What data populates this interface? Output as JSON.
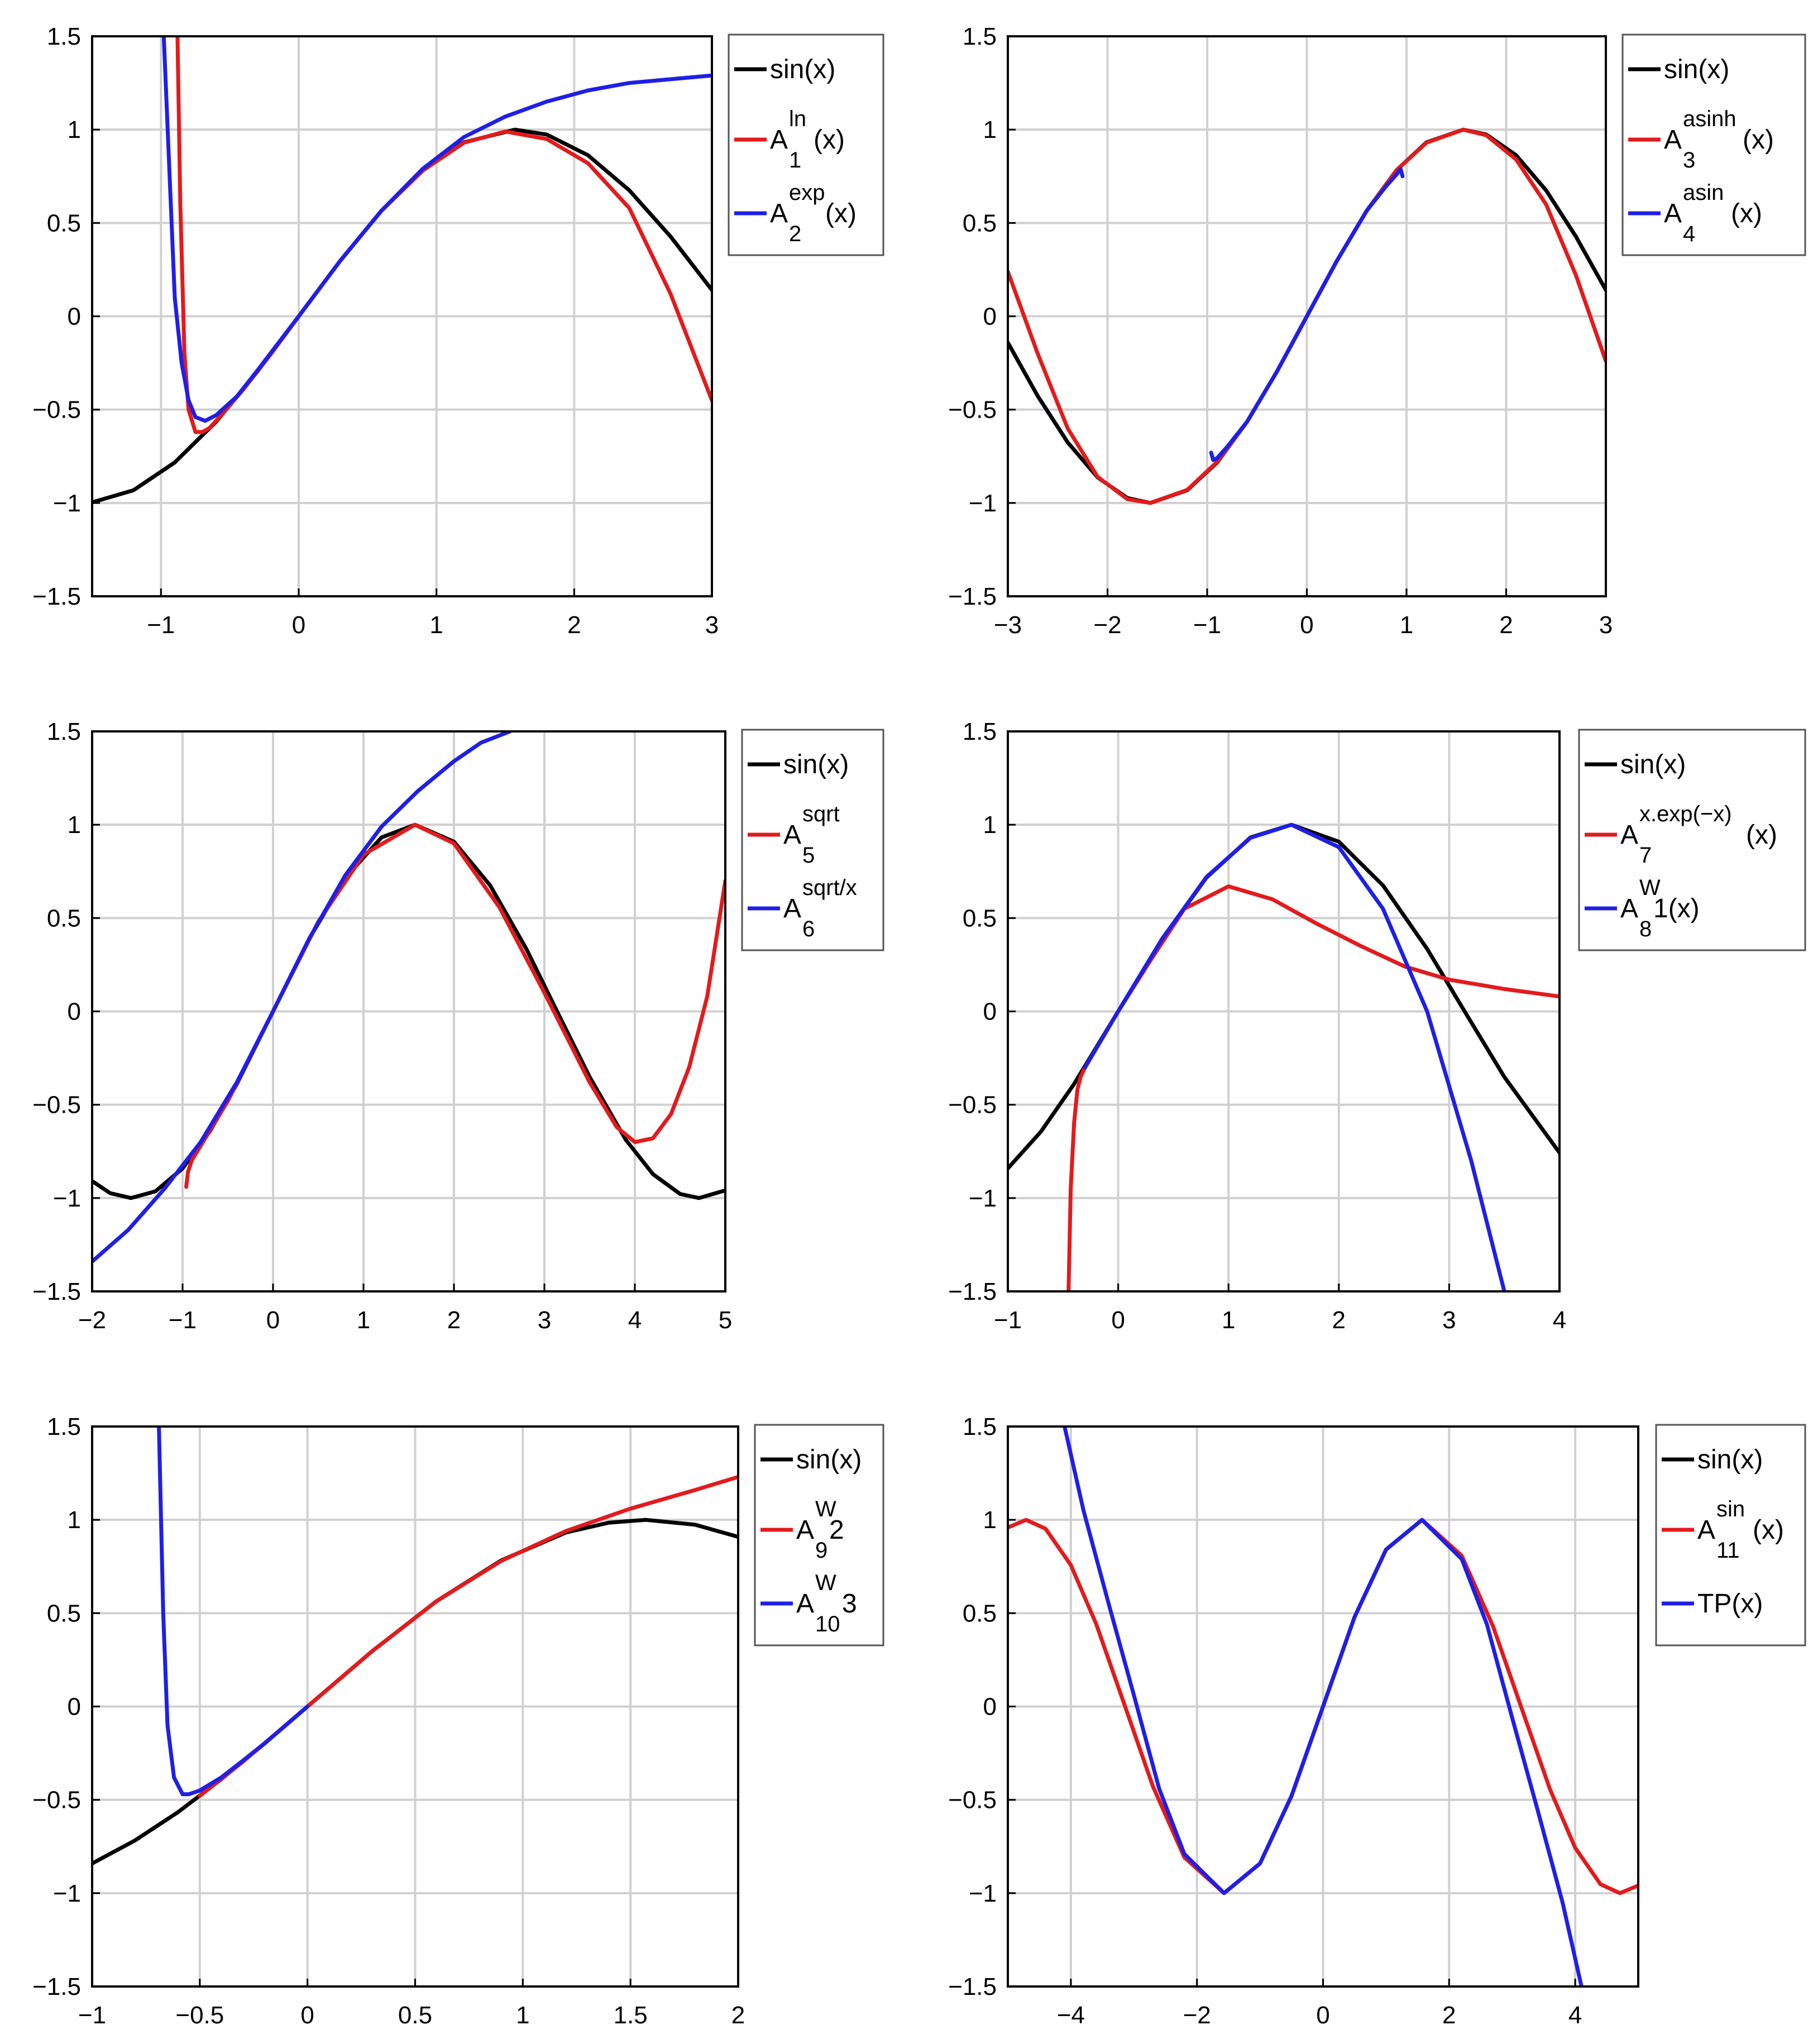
{
  "colors": {
    "sin": "#000000",
    "red": "#e41a1c",
    "blue": "#1f1fe8",
    "grid": "#d0d0d0"
  },
  "chart_data": [
    {
      "type": "line",
      "id": "p1",
      "xlim": [
        -1.5,
        3
      ],
      "ylim": [
        -1.5,
        1.5
      ],
      "xticks": [
        "-1",
        "0",
        "1",
        "2",
        "3"
      ],
      "yticks": [
        "-1.5",
        "-1",
        "-0.5",
        "0",
        "0.5",
        "1",
        "1.5"
      ],
      "grid": true,
      "legend": [
        {
          "base": "sin(x)",
          "sup": "",
          "sub": "",
          "post": ""
        },
        {
          "base": "A",
          "sup": "ln",
          "sub": "1",
          "post": "(x)"
        },
        {
          "base": "A",
          "sup": "exp",
          "sub": "2",
          "post": "(x)"
        }
      ],
      "series": [
        {
          "name": "sin(x)",
          "color": "sin",
          "x": [
            -1.5,
            -1.2,
            -0.9,
            -0.6,
            -0.3,
            0,
            0.3,
            0.6,
            0.9,
            1.2,
            1.57,
            1.8,
            2.1,
            2.4,
            2.7,
            3.0
          ],
          "y": [
            -0.997,
            -0.932,
            -0.783,
            -0.565,
            -0.296,
            0,
            0.296,
            0.565,
            0.783,
            0.932,
            1.0,
            0.974,
            0.863,
            0.675,
            0.427,
            0.141
          ]
        },
        {
          "name": "A1 ln(x)",
          "color": "red",
          "x": [
            -0.88,
            -0.86,
            -0.83,
            -0.8,
            -0.75,
            -0.7,
            -0.65,
            -0.55,
            -0.4,
            -0.2,
            0,
            0.3,
            0.6,
            0.9,
            1.2,
            1.5,
            1.8,
            2.1,
            2.4,
            2.7,
            3.0
          ],
          "y": [
            1.5,
            0.6,
            -0.2,
            -0.5,
            -0.62,
            -0.62,
            -0.6,
            -0.52,
            -0.39,
            -0.2,
            0,
            0.296,
            0.565,
            0.78,
            0.93,
            0.99,
            0.95,
            0.82,
            0.58,
            0.12,
            -0.45
          ]
        },
        {
          "name": "A2 exp(x)",
          "color": "blue",
          "x": [
            -0.98,
            -0.94,
            -0.9,
            -0.85,
            -0.8,
            -0.75,
            -0.68,
            -0.6,
            -0.45,
            -0.3,
            0,
            0.3,
            0.6,
            0.9,
            1.2,
            1.5,
            1.8,
            2.1,
            2.4,
            2.7,
            3.0
          ],
          "y": [
            1.5,
            0.8,
            0.1,
            -0.25,
            -0.45,
            -0.54,
            -0.56,
            -0.53,
            -0.43,
            -0.29,
            0,
            0.296,
            0.565,
            0.79,
            0.96,
            1.07,
            1.15,
            1.21,
            1.25,
            1.27,
            1.29
          ]
        }
      ]
    },
    {
      "type": "line",
      "id": "p2",
      "xlim": [
        -3,
        3
      ],
      "ylim": [
        -1.5,
        1.5
      ],
      "xticks": [
        "-3",
        "-2",
        "-1",
        "0",
        "1",
        "2",
        "3"
      ],
      "yticks": [
        "-1.5",
        "-1",
        "-0.5",
        "0",
        "0.5",
        "1",
        "1.5"
      ],
      "grid": true,
      "legend": [
        {
          "base": "sin(x)",
          "sup": "",
          "sub": "",
          "post": ""
        },
        {
          "base": "A",
          "sup": "asinh",
          "sub": "3",
          "post": "(x)"
        },
        {
          "base": "A",
          "sup": "asin",
          "sub": "4",
          "post": "(x)"
        }
      ],
      "series": [
        {
          "name": "sin(x)",
          "color": "sin",
          "x": [
            -3,
            -2.7,
            -2.4,
            -2.1,
            -1.8,
            -1.57,
            -1.2,
            -0.9,
            -0.6,
            -0.3,
            0,
            0.3,
            0.6,
            0.9,
            1.2,
            1.57,
            1.8,
            2.1,
            2.4,
            2.7,
            3.0
          ],
          "y": [
            -0.141,
            -0.427,
            -0.675,
            -0.863,
            -0.974,
            -1.0,
            -0.932,
            -0.783,
            -0.565,
            -0.296,
            0,
            0.296,
            0.565,
            0.783,
            0.932,
            1.0,
            0.974,
            0.863,
            0.675,
            0.427,
            0.141
          ]
        },
        {
          "name": "A3 asinh(x)",
          "color": "red",
          "x": [
            -3,
            -2.7,
            -2.4,
            -2.1,
            -1.8,
            -1.57,
            -1.2,
            -0.9,
            -0.6,
            -0.3,
            0,
            0.3,
            0.6,
            0.9,
            1.2,
            1.57,
            1.8,
            2.1,
            2.4,
            2.7,
            3.0
          ],
          "y": [
            0.24,
            -0.2,
            -0.6,
            -0.86,
            -0.98,
            -1.0,
            -0.93,
            -0.78,
            -0.565,
            -0.296,
            0,
            0.296,
            0.565,
            0.783,
            0.93,
            1.0,
            0.97,
            0.84,
            0.6,
            0.22,
            -0.24
          ]
        },
        {
          "name": "A4 asin(x)",
          "color": "blue",
          "x": [
            -0.96,
            -0.94,
            -0.9,
            -0.8,
            -0.6,
            -0.3,
            0,
            0.3,
            0.6,
            0.8,
            0.9,
            0.94,
            0.96
          ],
          "y": [
            -0.73,
            -0.77,
            -0.76,
            -0.7,
            -0.565,
            -0.296,
            0,
            0.296,
            0.565,
            0.7,
            0.76,
            0.79,
            0.75
          ]
        }
      ]
    },
    {
      "type": "line",
      "id": "p3",
      "xlim": [
        -2,
        5
      ],
      "ylim": [
        -1.5,
        1.5
      ],
      "xticks": [
        "-2",
        "-1",
        "0",
        "1",
        "2",
        "3",
        "4",
        "5"
      ],
      "yticks": [
        "-1.5",
        "-1",
        "-0.5",
        "0",
        "0.5",
        "1",
        "1.5"
      ],
      "grid": true,
      "legend": [
        {
          "base": "sin(x)",
          "sup": "",
          "sub": "",
          "post": ""
        },
        {
          "base": "A",
          "sup": "sqrt",
          "sub": "5",
          "post": ""
        },
        {
          "base": "A",
          "sup": "sqrt/x",
          "sub": "6",
          "post": ""
        }
      ],
      "series": [
        {
          "name": "sin(x)",
          "color": "sin",
          "x": [
            -2,
            -1.8,
            -1.57,
            -1.3,
            -1.0,
            -0.7,
            -0.4,
            0,
            0.4,
            0.8,
            1.2,
            1.57,
            2.0,
            2.4,
            2.8,
            3.14,
            3.5,
            3.9,
            4.2,
            4.5,
            4.71,
            5.0
          ],
          "y": [
            -0.909,
            -0.974,
            -1.0,
            -0.964,
            -0.841,
            -0.644,
            -0.389,
            0,
            0.389,
            0.717,
            0.932,
            1.0,
            0.909,
            0.675,
            0.335,
            0,
            -0.351,
            -0.688,
            -0.872,
            -0.978,
            -1.0,
            -0.959
          ]
        },
        {
          "name": "A5 sqrt",
          "color": "red",
          "x": [
            -0.96,
            -0.94,
            -0.9,
            -0.8,
            -0.5,
            0,
            0.5,
            1.0,
            1.57,
            2.0,
            2.5,
            3.0,
            3.5,
            3.8,
            4.0,
            4.2,
            4.4,
            4.6,
            4.8,
            5.0
          ],
          "y": [
            -0.94,
            -0.86,
            -0.8,
            -0.72,
            -0.48,
            0,
            0.48,
            0.84,
            1.0,
            0.9,
            0.56,
            0.1,
            -0.38,
            -0.62,
            -0.7,
            -0.68,
            -0.55,
            -0.3,
            0.08,
            0.7
          ]
        },
        {
          "name": "A6 sqrt/x",
          "color": "blue",
          "x": [
            -2,
            -1.6,
            -1.2,
            -0.8,
            -0.4,
            0,
            0.4,
            0.8,
            1.2,
            1.6,
            2.0,
            2.3,
            2.62
          ],
          "y": [
            -1.34,
            -1.17,
            -0.95,
            -0.7,
            -0.38,
            0,
            0.39,
            0.73,
            0.99,
            1.18,
            1.34,
            1.44,
            1.5
          ]
        }
      ]
    },
    {
      "type": "line",
      "id": "p4",
      "xlim": [
        -1,
        4
      ],
      "ylim": [
        -1.5,
        1.5
      ],
      "xticks": [
        "-1",
        "0",
        "1",
        "2",
        "3",
        "4"
      ],
      "yticks": [
        "-1.5",
        "-1",
        "-0.5",
        "0",
        "0.5",
        "1",
        "1.5"
      ],
      "grid": true,
      "legend": [
        {
          "base": "sin(x)",
          "sup": "",
          "sub": "",
          "post": ""
        },
        {
          "base": "A",
          "sup": "x.exp(−x)",
          "sub": "7",
          "post": "(x)"
        },
        {
          "base": "A",
          "sup": "W",
          "sub": "8",
          "post": "1(x)"
        }
      ],
      "series": [
        {
          "name": "sin(x)",
          "color": "sin",
          "x": [
            -1,
            -0.7,
            -0.4,
            0,
            0.4,
            0.8,
            1.2,
            1.57,
            2.0,
            2.4,
            2.8,
            3.14,
            3.5,
            4.0
          ],
          "y": [
            -0.841,
            -0.644,
            -0.389,
            0,
            0.389,
            0.717,
            0.932,
            1.0,
            0.909,
            0.675,
            0.335,
            0,
            -0.351,
            -0.757
          ]
        },
        {
          "name": "A7 x.exp(-x)",
          "color": "red",
          "x": [
            -0.45,
            -0.43,
            -0.4,
            -0.37,
            -0.34,
            -0.3,
            0,
            0.3,
            0.6,
            1.0,
            1.4,
            1.8,
            2.2,
            2.6,
            3.0,
            3.5,
            4.0
          ],
          "y": [
            -1.5,
            -0.95,
            -0.6,
            -0.42,
            -0.35,
            -0.3,
            0,
            0.28,
            0.55,
            0.67,
            0.6,
            0.47,
            0.35,
            0.24,
            0.17,
            0.12,
            0.08
          ]
        },
        {
          "name": "A8 W1(x)",
          "color": "blue",
          "x": [
            -0.3,
            0,
            0.4,
            0.8,
            1.2,
            1.57,
            2.0,
            2.4,
            2.8,
            3.2,
            3.5
          ],
          "y": [
            -0.3,
            0,
            0.39,
            0.72,
            0.93,
            1.0,
            0.88,
            0.55,
            0.0,
            -0.8,
            -1.5
          ]
        }
      ]
    },
    {
      "type": "line",
      "id": "p5",
      "xlim": [
        -1,
        2
      ],
      "ylim": [
        -1.5,
        1.5
      ],
      "xticks": [
        "-1",
        "-0.5",
        "0",
        "0.5",
        "1",
        "1.5",
        "2"
      ],
      "yticks": [
        "-1.5",
        "-1",
        "-0.5",
        "0",
        "0.5",
        "1",
        "1.5"
      ],
      "grid": true,
      "legend": [
        {
          "base": "sin(x)",
          "sup": "",
          "sub": "",
          "post": ""
        },
        {
          "base": "A",
          "sup": "W",
          "sub": "9",
          "post": "2"
        },
        {
          "base": "A",
          "sup": "W",
          "sub": "10",
          "post": "3"
        }
      ],
      "series": [
        {
          "name": "sin(x)",
          "color": "sin",
          "x": [
            -1,
            -0.8,
            -0.6,
            -0.4,
            -0.2,
            0,
            0.3,
            0.6,
            0.9,
            1.2,
            1.4,
            1.57,
            1.8,
            2.0
          ],
          "y": [
            -0.841,
            -0.717,
            -0.565,
            -0.389,
            -0.199,
            0,
            0.296,
            0.565,
            0.783,
            0.932,
            0.985,
            1.0,
            0.974,
            0.909
          ]
        },
        {
          "name": "A9 W2",
          "color": "red",
          "x": [
            -0.5,
            -0.3,
            0,
            0.3,
            0.6,
            0.9,
            1.2,
            1.5,
            1.8,
            2.0
          ],
          "y": [
            -0.479,
            -0.296,
            0,
            0.296,
            0.565,
            0.78,
            0.94,
            1.06,
            1.16,
            1.23
          ]
        },
        {
          "name": "A10 W3",
          "color": "blue",
          "x": [
            -0.69,
            -0.67,
            -0.65,
            -0.62,
            -0.58,
            -0.55,
            -0.5,
            -0.4,
            -0.3,
            -0.2,
            -0.1,
            0
          ],
          "y": [
            1.5,
            0.5,
            -0.1,
            -0.38,
            -0.47,
            -0.47,
            -0.45,
            -0.38,
            -0.29,
            -0.198,
            -0.1,
            0
          ]
        }
      ]
    },
    {
      "type": "line",
      "id": "p6",
      "xlim": [
        -5,
        5
      ],
      "ylim": [
        -1.5,
        1.5
      ],
      "xticks": [
        "-4",
        "-2",
        "0",
        "2",
        "4"
      ],
      "yticks": [
        "-1.5",
        "-1",
        "-0.5",
        "0",
        "0.5",
        "1",
        "1.5"
      ],
      "grid": true,
      "legend": [
        {
          "base": "sin(x)",
          "sup": "",
          "sub": "",
          "post": ""
        },
        {
          "base": "A",
          "sup": "sin",
          "sub": "11",
          "post": "(x)"
        },
        {
          "base": "TP(x)",
          "sup": "",
          "sub": "",
          "post": ""
        }
      ],
      "series": [
        {
          "name": "A11 sin(x)",
          "color": "red",
          "x": [
            -5,
            -4.71,
            -4.4,
            -4.0,
            -3.6,
            -3.14,
            -2.7,
            -2.2,
            -1.57,
            -1.0,
            -0.5,
            0,
            0.5,
            1.0,
            1.57,
            2.2,
            2.7,
            3.14,
            3.6,
            4.0,
            4.4,
            4.71,
            5.0
          ],
          "y": [
            0.959,
            1.0,
            0.952,
            0.757,
            0.443,
            0,
            -0.427,
            -0.808,
            -1.0,
            -0.841,
            -0.479,
            0,
            0.479,
            0.841,
            1.0,
            0.808,
            0.427,
            0,
            -0.443,
            -0.757,
            -0.952,
            -1.0,
            -0.959
          ]
        },
        {
          "name": "TP(x)",
          "color": "blue",
          "x": [
            -4.1,
            -3.8,
            -3.4,
            -3.0,
            -2.6,
            -2.2,
            -1.57,
            -1.0,
            -0.5,
            0,
            0.5,
            1.0,
            1.57,
            2.2,
            2.6,
            3.0,
            3.4,
            3.8,
            4.1
          ],
          "y": [
            1.5,
            1.05,
            0.55,
            0.06,
            -0.44,
            -0.79,
            -1.0,
            -0.841,
            -0.479,
            0,
            0.479,
            0.841,
            1.0,
            0.79,
            0.44,
            -0.06,
            -0.55,
            -1.05,
            -1.5
          ]
        }
      ]
    }
  ]
}
